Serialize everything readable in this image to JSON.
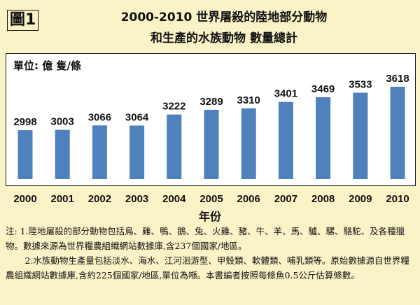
{
  "figure_label": "圖1",
  "title_line1": "2000-2010  世界屠殺的陸地部分動物",
  "title_line2": "和生產的水族動物 數量總計",
  "notes": {
    "n1": "注: 1.陸地屠殺的部分動物包括鳥、雞、鴨、鵝、兔、火雞、豬、牛、羊、馬、驢、騾、駱駝、及各種獵物。數據來源為世界糧農組織網站數據庫,含237個國家/地區。",
    "n2": "2.水族動物生產量包括淡水、海水、江河洄游型、甲殼類、軟體類、哺乳類等。原始數據源自世界糧農組織網站數據庫,含約225個國家/地區,單位為噸。本書編者按照每條魚0.5公斤估算條數。"
  },
  "chart_data": {
    "type": "bar",
    "unit_label": "單位: 億 隻/條",
    "xlabel": "年份",
    "categories": [
      "2000",
      "2001",
      "2002",
      "2003",
      "2004",
      "2005",
      "2006",
      "2007",
      "2008",
      "2009",
      "2010"
    ],
    "values": [
      2998,
      3003,
      3066,
      3064,
      3222,
      3289,
      3310,
      3401,
      3469,
      3533,
      3618
    ],
    "bar_color": "#4f81bd",
    "grid": false,
    "legend": "none"
  }
}
